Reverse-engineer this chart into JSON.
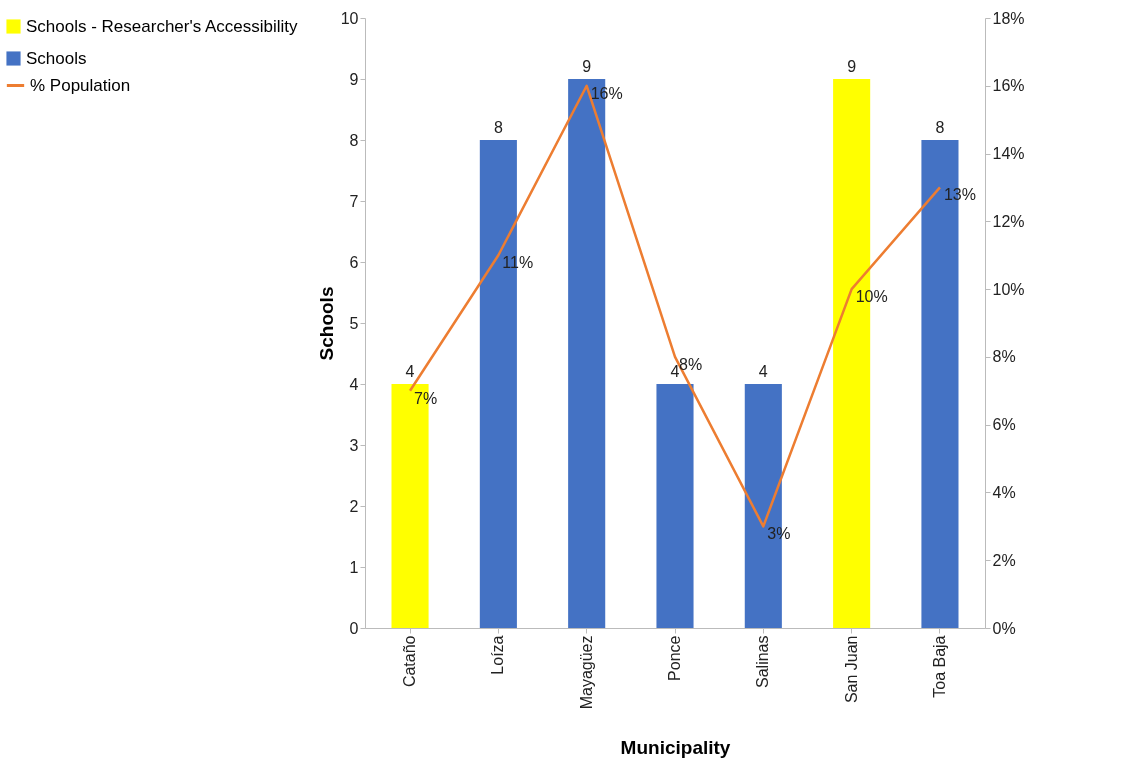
{
  "chart_data": {
    "type": "bar",
    "xlabel": "Municipality",
    "ylabel": "Schools",
    "categories": [
      "Cataño",
      "Loíza",
      "Mayagüez",
      "Ponce",
      "Salinas",
      "San Juan",
      "Toa Baja"
    ],
    "series": [
      {
        "name": "Schools - Researcher's Accessibility",
        "color": "#ffff00",
        "values": [
          4,
          null,
          null,
          null,
          null,
          9,
          null
        ],
        "value_labels": [
          "4",
          null,
          null,
          null,
          null,
          "9",
          null
        ]
      },
      {
        "name": "Schools",
        "color": "#4472c4",
        "values": [
          null,
          8,
          9,
          4,
          4,
          null,
          8
        ],
        "value_labels": [
          null,
          "8",
          "9",
          "4",
          "4",
          null,
          "8"
        ]
      },
      {
        "name": "% Population",
        "type": "line",
        "axis": "y2",
        "color": "#ed7d31",
        "values": [
          7,
          11,
          16,
          8,
          3,
          10,
          13
        ],
        "value_labels": [
          "7%",
          "11%",
          "16%",
          "8%",
          "3%",
          "10%",
          "13%"
        ]
      }
    ],
    "ylim": [
      0,
      10
    ],
    "yticks": [
      0,
      1,
      2,
      3,
      4,
      5,
      6,
      7,
      8,
      9,
      10
    ],
    "y2lim": [
      0,
      18
    ],
    "y2ticks": [
      {
        "value": 0,
        "label": "0%"
      },
      {
        "value": 2,
        "label": "2%"
      },
      {
        "value": 4,
        "label": "4%"
      },
      {
        "value": 6,
        "label": "6%"
      },
      {
        "value": 8,
        "label": "8%"
      },
      {
        "value": 10,
        "label": "10%"
      },
      {
        "value": 12,
        "label": "12%"
      },
      {
        "value": 14,
        "label": "14%"
      },
      {
        "value": 16,
        "label": "16%"
      },
      {
        "value": 18,
        "label": "18%"
      }
    ],
    "legend": "top left"
  }
}
